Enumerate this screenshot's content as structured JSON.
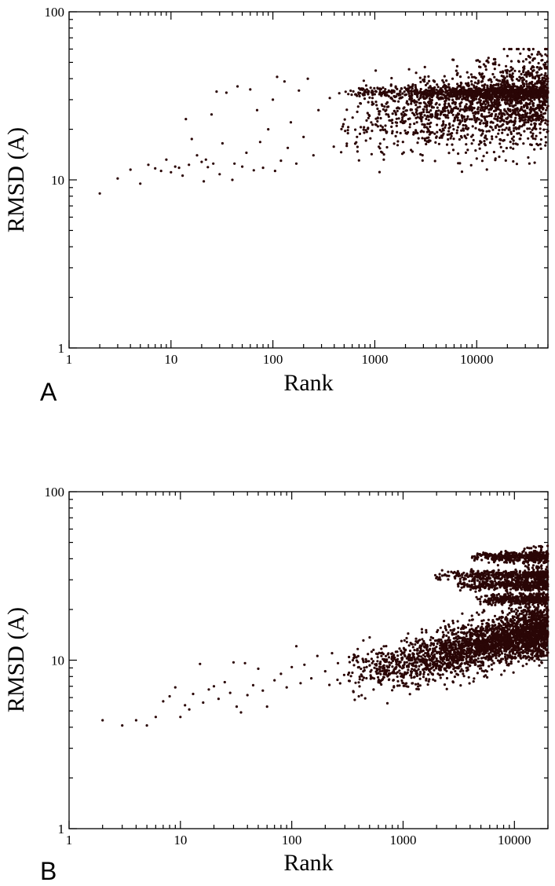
{
  "chart_data": [
    {
      "panel": "A",
      "type": "scatter",
      "xlabel": "Rank",
      "ylabel": "RMSD (A)",
      "xscale": "log",
      "yscale": "log",
      "xlim": [
        1,
        50000
      ],
      "ylim": [
        1,
        100
      ],
      "xticks": [
        "1",
        "10",
        "100",
        "1000",
        "10000"
      ],
      "yticks": [
        "1",
        "10",
        "100"
      ],
      "grid": false,
      "marker_color": "#2a0606",
      "points": [
        [
          2,
          8.3
        ],
        [
          3,
          10.2
        ],
        [
          4,
          11.5
        ],
        [
          5,
          9.5
        ],
        [
          6,
          12.3
        ],
        [
          7,
          11.7
        ],
        [
          8,
          11.3
        ],
        [
          9,
          13.2
        ],
        [
          10,
          11.1
        ],
        [
          11,
          12.0
        ],
        [
          12,
          11.8
        ],
        [
          13,
          10.6
        ],
        [
          14,
          23.0
        ],
        [
          15,
          12.3
        ],
        [
          16,
          17.5
        ],
        [
          18,
          14.0
        ],
        [
          20,
          12.8
        ],
        [
          21,
          9.8
        ],
        [
          22,
          13.2
        ],
        [
          23,
          11.9
        ],
        [
          25,
          24.5
        ],
        [
          26,
          12.5
        ],
        [
          28,
          33.5
        ],
        [
          30,
          10.8
        ],
        [
          32,
          16.5
        ],
        [
          35,
          33.0
        ],
        [
          40,
          10.0
        ],
        [
          42,
          12.5
        ],
        [
          45,
          36.0
        ],
        [
          50,
          12.0
        ],
        [
          55,
          14.5
        ],
        [
          60,
          34.5
        ],
        [
          65,
          11.4
        ],
        [
          70,
          26.0
        ],
        [
          75,
          16.8
        ],
        [
          80,
          11.8
        ],
        [
          90,
          20.0
        ],
        [
          100,
          30.0
        ],
        [
          105,
          11.3
        ],
        [
          110,
          41.0
        ],
        [
          120,
          13.0
        ],
        [
          130,
          38.5
        ],
        [
          140,
          15.5
        ],
        [
          150,
          22.0
        ],
        [
          170,
          12.5
        ],
        [
          180,
          34.0
        ],
        [
          200,
          18.0
        ],
        [
          220,
          40.0
        ],
        [
          250,
          14.0
        ],
        [
          280,
          26.0
        ]
      ],
      "dense_region": {
        "x_range": [
          300,
          50000
        ],
        "y_range": [
          11,
          60
        ],
        "band_y": 33
      }
    },
    {
      "panel": "B",
      "type": "scatter",
      "xlabel": "Rank",
      "ylabel": "RMSD (A)",
      "xscale": "log",
      "yscale": "log",
      "xlim": [
        1,
        20000
      ],
      "ylim": [
        1,
        100
      ],
      "xticks": [
        "1",
        "10",
        "100",
        "1000",
        "10000"
      ],
      "yticks": [
        "1",
        "10",
        "100"
      ],
      "grid": false,
      "marker_color": "#2a0606",
      "points": [
        [
          2,
          4.4
        ],
        [
          3,
          4.1
        ],
        [
          4,
          4.4
        ],
        [
          5,
          4.1
        ],
        [
          6,
          4.6
        ],
        [
          7,
          5.7
        ],
        [
          8,
          6.1
        ],
        [
          9,
          6.9
        ],
        [
          10,
          4.6
        ],
        [
          11,
          5.4
        ],
        [
          12,
          5.1
        ],
        [
          13,
          6.3
        ],
        [
          15,
          9.5
        ],
        [
          16,
          5.6
        ],
        [
          18,
          6.7
        ],
        [
          20,
          7.0
        ],
        [
          22,
          5.9
        ],
        [
          25,
          7.4
        ],
        [
          28,
          6.4
        ],
        [
          30,
          9.7
        ],
        [
          32,
          5.3
        ],
        [
          35,
          4.9
        ],
        [
          38,
          9.6
        ],
        [
          40,
          6.2
        ],
        [
          45,
          7.1
        ],
        [
          50,
          8.9
        ],
        [
          55,
          6.6
        ],
        [
          60,
          5.3
        ],
        [
          70,
          7.6
        ],
        [
          80,
          8.3
        ],
        [
          90,
          6.9
        ],
        [
          100,
          9.1
        ],
        [
          110,
          12.1
        ],
        [
          120,
          7.3
        ],
        [
          130,
          9.4
        ],
        [
          150,
          7.8
        ],
        [
          170,
          10.6
        ],
        [
          200,
          8.6
        ],
        [
          230,
          11.0
        ],
        [
          260,
          9.6
        ]
      ],
      "dense_region": {
        "x_range": [
          200,
          20000
        ],
        "y_range": [
          5.5,
          50
        ],
        "upper_bands_y": [
          41,
          32,
          28,
          23
        ]
      }
    }
  ],
  "panel_labels": [
    "A",
    "B"
  ]
}
